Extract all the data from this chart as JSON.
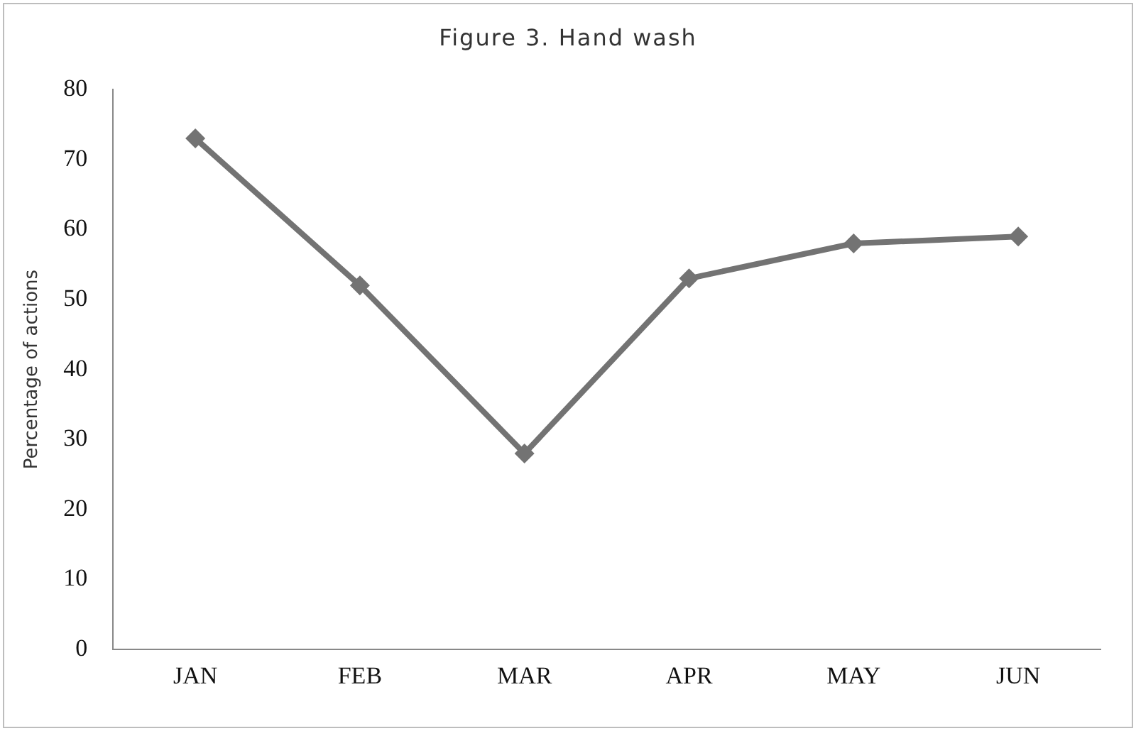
{
  "chart_data": {
    "type": "line",
    "title": "Figure 3. Hand wash",
    "ylabel": "Percentage of actions",
    "categories": [
      "JAN",
      "FEB",
      "MAR",
      "APR",
      "MAY",
      "JUN"
    ],
    "series": [
      {
        "color": "#737373",
        "values": [
          73,
          52,
          28,
          53,
          58,
          59
        ]
      }
    ],
    "ylim": [
      0,
      80
    ],
    "yticks": [
      0,
      10,
      20,
      30,
      40,
      50,
      60,
      70,
      80
    ],
    "grid": false,
    "legend": false,
    "marker": "diamond",
    "line_style": "solid"
  }
}
